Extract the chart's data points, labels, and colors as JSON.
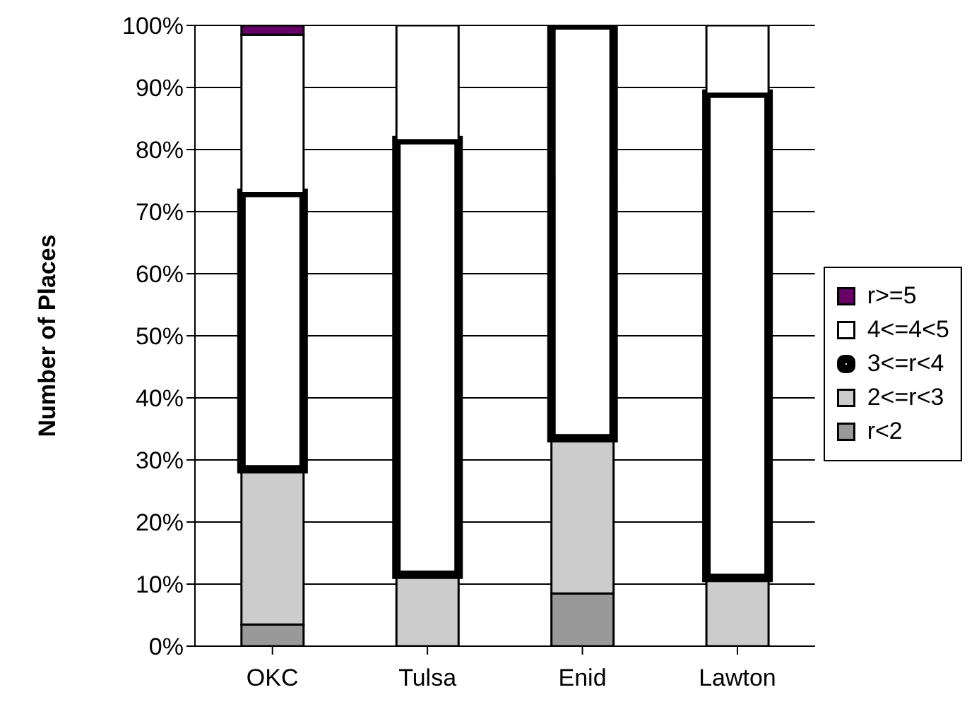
{
  "chart_data": {
    "type": "bar",
    "stacked": true,
    "ylabel": "Number of Places",
    "categories": [
      "OKC",
      "Tulsa",
      "Enid",
      "Lawton"
    ],
    "series": [
      {
        "name": "r<2",
        "color": "#999999",
        "values": [
          3.5,
          0,
          8.5,
          0
        ]
      },
      {
        "name": "2<=r<3",
        "color": "#cccccc",
        "values": [
          25,
          11.5,
          25,
          11
        ]
      },
      {
        "name": "3<=r<4",
        "color": "#ffffff",
        "values": [
          44.5,
          70,
          66.5,
          78
        ]
      },
      {
        "name": "4<=4<5",
        "color": "#ffffff",
        "values": [
          25.5,
          18.5,
          0,
          11
        ]
      },
      {
        "name": "r>=5",
        "color": "#660066",
        "values": [
          1.5,
          0,
          0,
          0
        ]
      }
    ],
    "ylim": [
      0,
      100
    ],
    "yticks": [
      {
        "value": 0,
        "label": "0%"
      },
      {
        "value": 10,
        "label": "10%"
      },
      {
        "value": 20,
        "label": "20%"
      },
      {
        "value": 30,
        "label": "30%"
      },
      {
        "value": 40,
        "label": "40%"
      },
      {
        "value": 50,
        "label": "50%"
      },
      {
        "value": 60,
        "label": "60%"
      },
      {
        "value": 70,
        "label": "70%"
      },
      {
        "value": 80,
        "label": "80%"
      },
      {
        "value": 90,
        "label": "90%"
      },
      {
        "value": 100,
        "label": "100%"
      }
    ],
    "grid": "y",
    "legend": "right"
  }
}
